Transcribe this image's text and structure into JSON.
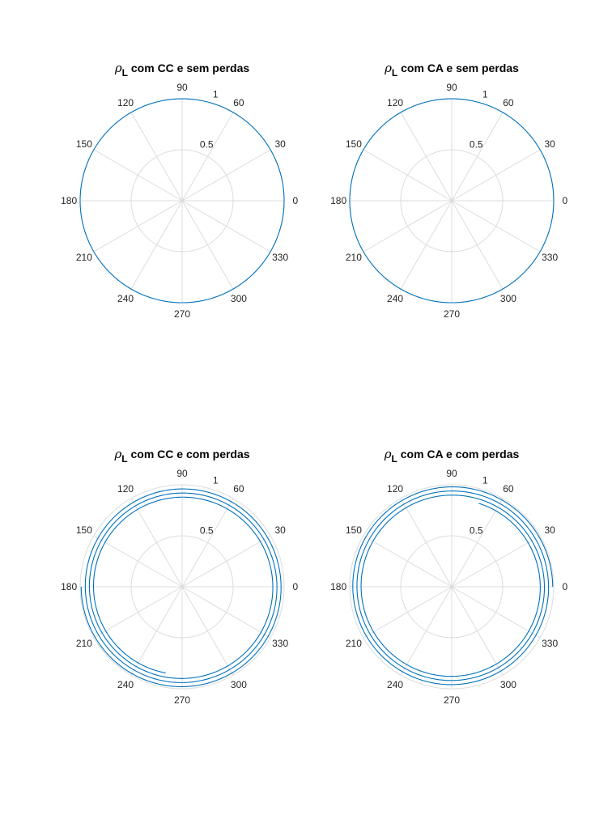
{
  "style": {
    "grid_color": "#dcdcdc",
    "series_color": "#0072bd",
    "text_color": "#262626"
  },
  "chart_data": [
    {
      "type": "polar",
      "title_symbol": "ρ",
      "title_subscript": "L",
      "title_text": " com CC e sem perdas",
      "theta_ticks": [
        "0",
        "30",
        "60",
        "90",
        "120",
        "150",
        "180",
        "210",
        "240",
        "270",
        "300",
        "330"
      ],
      "r_ticks": [
        "0.5",
        "1"
      ],
      "rlim": [
        0,
        1
      ],
      "grid": true,
      "series": [
        {
          "kind": "circle",
          "r": 1.0
        }
      ]
    },
    {
      "type": "polar",
      "title_symbol": "ρ",
      "title_subscript": "L",
      "title_text": " com CA e sem perdas",
      "theta_ticks": [
        "0",
        "30",
        "60",
        "90",
        "120",
        "150",
        "180",
        "210",
        "240",
        "270",
        "300",
        "330"
      ],
      "r_ticks": [
        "0.5",
        "1"
      ],
      "rlim": [
        0,
        1
      ],
      "grid": true,
      "series": [
        {
          "kind": "circle",
          "r": 1.0
        }
      ]
    },
    {
      "type": "polar",
      "title_symbol": "ρ",
      "title_subscript": "L",
      "title_text": " com CC e com perdas",
      "theta_ticks": [
        "0",
        "30",
        "60",
        "90",
        "120",
        "150",
        "180",
        "210",
        "240",
        "270",
        "300",
        "330"
      ],
      "r_ticks": [
        "0.5",
        "1"
      ],
      "rlim": [
        0,
        1
      ],
      "grid": true,
      "series": [
        {
          "kind": "spiral",
          "theta_start_deg": 180,
          "r_start": 0.99,
          "r_end": 0.86,
          "turns": 3.22
        }
      ]
    },
    {
      "type": "polar",
      "title_symbol": "ρ",
      "title_subscript": "L",
      "title_text": " com CA e com perdas",
      "theta_ticks": [
        "0",
        "30",
        "60",
        "90",
        "120",
        "150",
        "180",
        "210",
        "240",
        "270",
        "300",
        "330"
      ],
      "r_ticks": [
        "0.5",
        "1"
      ],
      "rlim": [
        0,
        1
      ],
      "grid": true,
      "series": [
        {
          "kind": "spiral",
          "theta_start_deg": 0,
          "r_start": 0.99,
          "r_end": 0.86,
          "turns": 3.2
        }
      ]
    }
  ]
}
